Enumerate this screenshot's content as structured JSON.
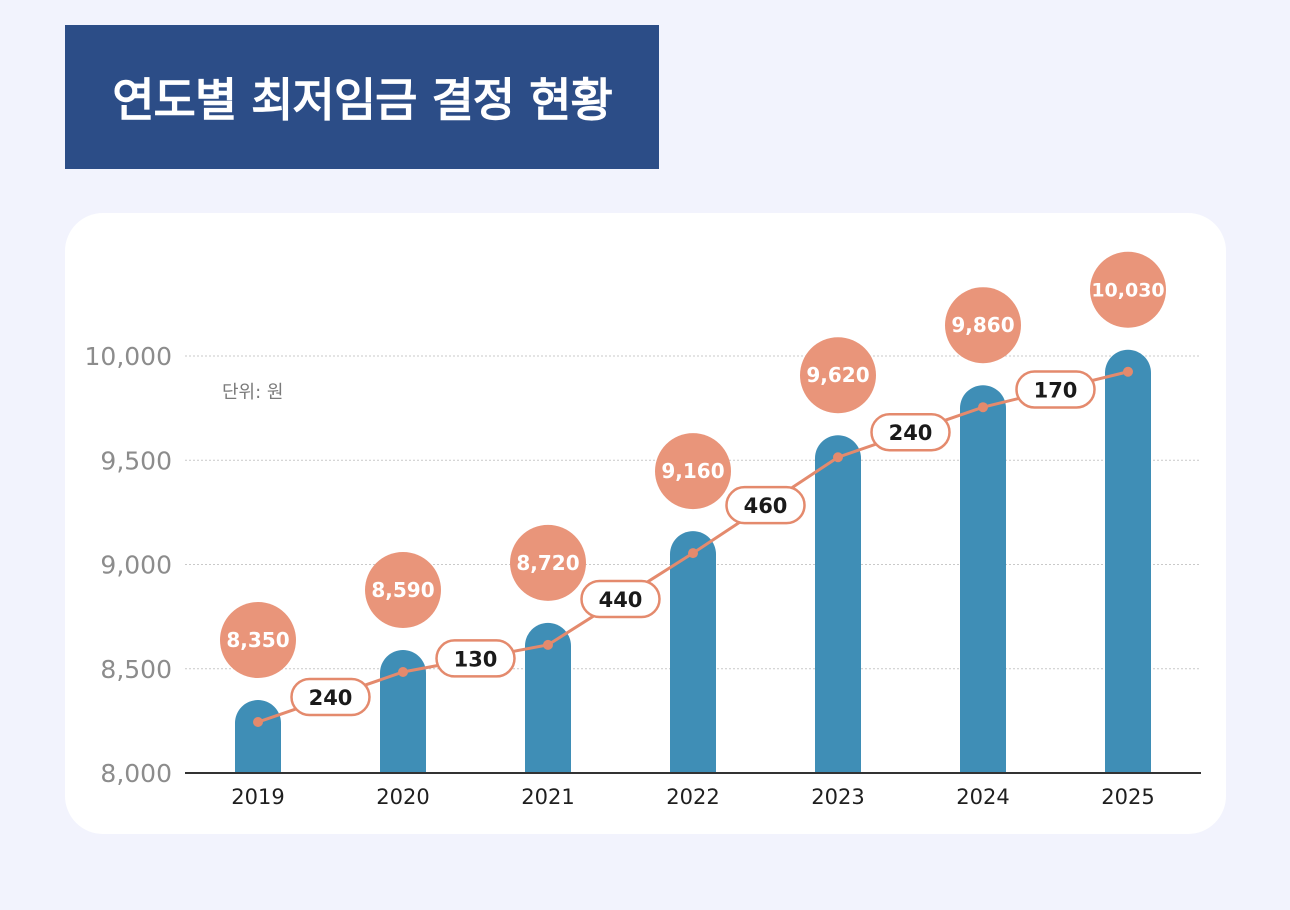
{
  "header": {
    "title": "연도별 최저임금 결정 현황"
  },
  "chart_data": {
    "type": "bar",
    "unit_label": "단위: 원",
    "categories": [
      "2019",
      "2020",
      "2021",
      "2022",
      "2023",
      "2024",
      "2025"
    ],
    "series": [
      {
        "values": [
          8350,
          8590,
          8720,
          9160,
          9620,
          9860,
          10030
        ]
      }
    ],
    "increase_labels": [
      "240",
      "130",
      "440",
      "460",
      "240",
      "170"
    ],
    "yticks": [
      "8,000",
      "8,500",
      "9,000",
      "9,500",
      "10,000"
    ],
    "ylim": [
      8000,
      10000
    ],
    "grid": true,
    "colors": {
      "bar": "#3f8eb6",
      "value_circle": "#e9957a",
      "trend_line": "#e48a6d",
      "axis": "#333333",
      "grid": "#c9c9c9"
    }
  }
}
